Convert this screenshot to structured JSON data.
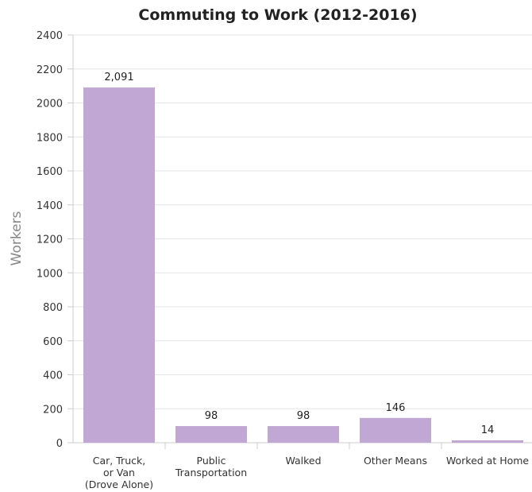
{
  "chart_data": {
    "type": "bar",
    "title": "Commuting to Work (2012-2016)",
    "xlabel": "",
    "ylabel": "Workers",
    "ylim": [
      0,
      2400
    ],
    "yticks": [
      0,
      200,
      400,
      600,
      800,
      1000,
      1200,
      1400,
      1600,
      1800,
      2000,
      2200,
      2400
    ],
    "grid": true,
    "categories": [
      [
        "Car, Truck,",
        "or Van",
        "(Drove Alone)"
      ],
      [
        "Public",
        "Transportation"
      ],
      [
        "Walked"
      ],
      [
        "Other Means"
      ],
      [
        "Worked at Home"
      ]
    ],
    "values": [
      2091,
      98,
      98,
      146,
      14
    ],
    "data_labels": [
      "2,091",
      "98",
      "98",
      "146",
      "14"
    ],
    "bar_color": "#c1a7d3",
    "grid_color": "#e6e6e6",
    "axis_color": "#cccccc",
    "text_color": "#333333",
    "ylabel_color": "#888888"
  }
}
